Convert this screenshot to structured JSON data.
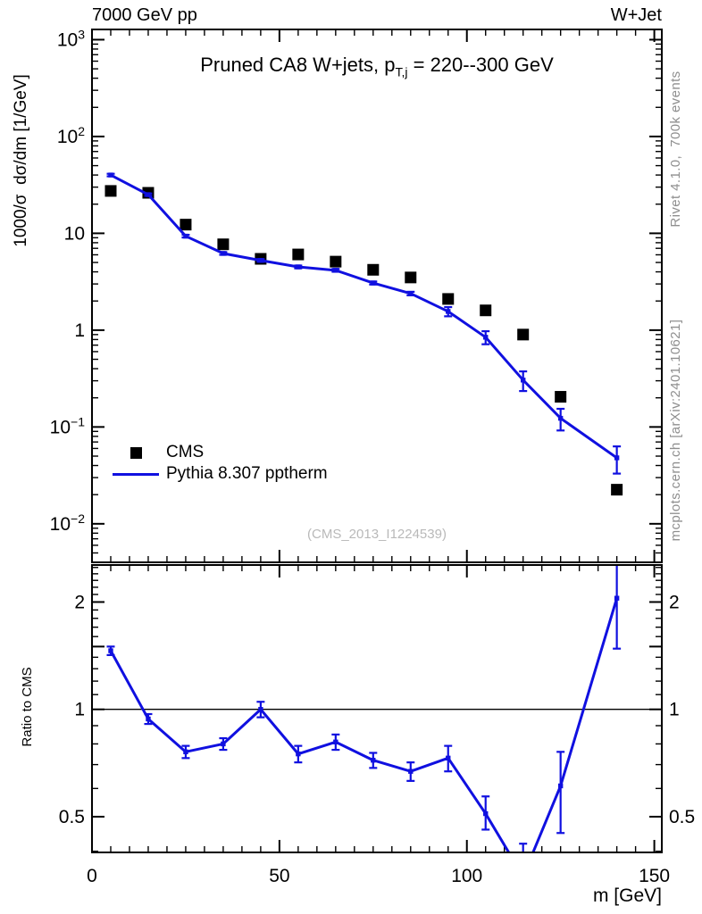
{
  "header": {
    "left": "7000 GeV pp",
    "right": "W+Jet"
  },
  "title": {
    "prefix": "Pruned CA8 W+jets, p",
    "sub": "T,j",
    "suffix": " = 220--300 GeV"
  },
  "axes": {
    "main_y_label": "1000/σ  dσ/dm [1/GeV]",
    "ratio_y_label": "Ratio to CMS",
    "x_label": "m [GeV]"
  },
  "legend": {
    "items": [
      {
        "label": "CMS",
        "marker": "square",
        "color": "#000000"
      },
      {
        "label": "Pythia 8.307 pptherm",
        "marker": "line",
        "color": "#1010e0"
      }
    ]
  },
  "watermark": "(CMS_2013_I1224539)",
  "credits": {
    "top": "Rivet 4.1.0,  700k events",
    "bottom": "mcplots.cern.ch [arXiv:2401.10621]"
  },
  "colors": {
    "mc": "#1010e0",
    "data": "#000000",
    "credits": "#8f8f8f",
    "watermark": "#b9b9b9"
  },
  "chart_data": [
    {
      "type": "line",
      "panel": "main",
      "title": "Pruned CA8 W+jets, p_T,j = 220--300 GeV",
      "xlabel": "m [GeV]",
      "ylabel": "1000/sigma dsigma/dm [1/GeV]",
      "y_scale": "log",
      "xlim": [
        0,
        152
      ],
      "ylim": [
        0.004,
        1275
      ],
      "x_major_ticks": [
        0,
        50,
        100,
        150
      ],
      "x_minor_step": 5,
      "y_tick_exponents": [
        3,
        2,
        1,
        0,
        -1,
        -2
      ],
      "legend_position": "lower-left",
      "grid": false,
      "series": [
        {
          "name": "CMS",
          "style": "scatter",
          "marker": "filled-square",
          "color": "#000000",
          "x": [
            5,
            15,
            25,
            35,
            45,
            55,
            65,
            75,
            85,
            95,
            105,
            115,
            125,
            140
          ],
          "y": [
            27.4,
            26.2,
            12.3,
            7.7,
            5.45,
            6.05,
            5.1,
            4.2,
            3.5,
            2.1,
            1.6,
            0.9,
            0.205,
            0.0225
          ]
        },
        {
          "name": "Pythia 8.307 pptherm",
          "style": "line-with-markers",
          "marker": "small-square",
          "color": "#1010e0",
          "x": [
            5,
            15,
            25,
            35,
            45,
            55,
            65,
            75,
            85,
            95,
            105,
            115,
            125,
            140
          ],
          "y": [
            40,
            25.1,
            9.35,
            6.2,
            5.25,
            4.5,
            4.15,
            3.07,
            2.39,
            1.56,
            0.845,
            0.305,
            0.123,
            0.048
          ],
          "yerr": [
            1.2,
            0.7,
            0.3,
            0.2,
            0.17,
            0.15,
            0.14,
            0.11,
            0.1,
            0.17,
            0.13,
            0.07,
            0.031,
            0.015
          ]
        }
      ]
    },
    {
      "type": "line",
      "panel": "ratio",
      "ylabel": "Ratio to CMS",
      "y_scale": "log",
      "xlim": [
        0,
        152
      ],
      "ylim": [
        0.397,
        2.54
      ],
      "x_major_ticks": [
        0,
        50,
        100,
        150
      ],
      "x_minor_step": 5,
      "y_labeled_ticks": [
        2,
        1,
        0.5
      ],
      "y_medium_ticks": [
        0.5,
        1,
        1.5,
        2
      ],
      "y_minor_tick_range": [
        0.4,
        2.5
      ],
      "y_minor_tick_step": 0.1,
      "reference_line": 1,
      "series": [
        {
          "name": "Pythia 8.307 pptherm / CMS",
          "style": "line-with-markers",
          "marker": "small-square",
          "color": "#1010e0",
          "x": [
            5,
            15,
            25,
            35,
            45,
            55,
            65,
            75,
            85,
            95,
            105,
            115,
            125,
            140
          ],
          "y": [
            1.46,
            0.94,
            0.76,
            0.8,
            1.0,
            0.75,
            0.81,
            0.72,
            0.67,
            0.73,
            0.51,
            0.34,
            0.61,
            2.05
          ],
          "yerr_hi": [
            0.04,
            0.03,
            0.03,
            0.03,
            0.05,
            0.04,
            0.04,
            0.035,
            0.04,
            0.06,
            0.06,
            0.08,
            0.15,
            0.55
          ],
          "yerr_lo": [
            0.04,
            0.03,
            0.03,
            0.03,
            0.05,
            0.04,
            0.04,
            0.035,
            0.04,
            0.06,
            0.05,
            0.07,
            0.16,
            0.57
          ]
        }
      ]
    }
  ]
}
